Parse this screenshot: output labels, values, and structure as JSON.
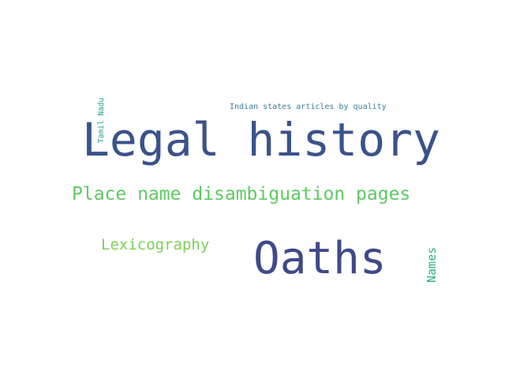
{
  "wordcloud": {
    "words": {
      "legal_history": {
        "text": "Legal history",
        "color": "#3b528b"
      },
      "oaths": {
        "text": "Oaths",
        "color": "#3e4a89"
      },
      "place_name": {
        "text": "Place name disambiguation pages",
        "color": "#5ec962"
      },
      "lexicography": {
        "text": "Lexicography",
        "color": "#7ad151"
      },
      "indian_states": {
        "text": "Indian states articles by quality",
        "color": "#3b7c9a"
      },
      "tamil_nadu": {
        "text": "Tamil Nadu",
        "color": "#2a9d8f"
      },
      "names": {
        "text": "Names",
        "color": "#2fb47c"
      }
    }
  }
}
